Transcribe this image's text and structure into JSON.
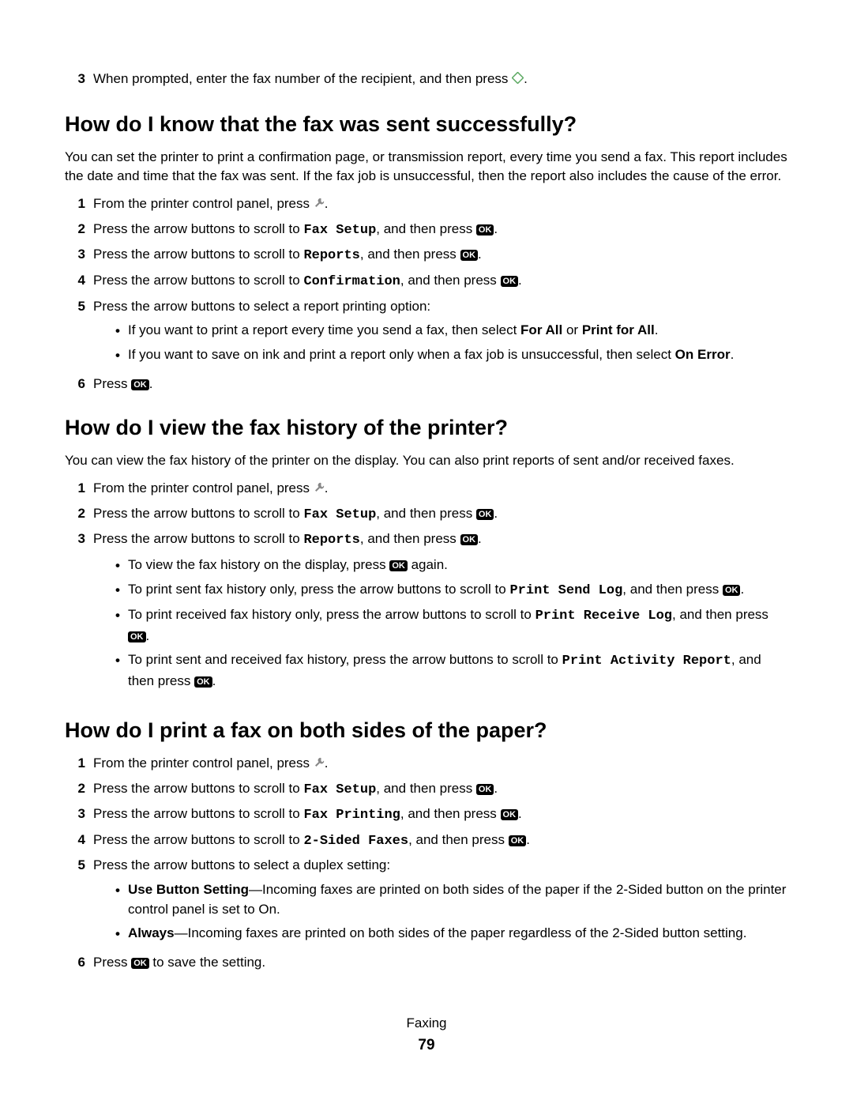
{
  "icons": {
    "diamond_color": "#5aa860",
    "ok_label": "OK",
    "wrench_color": "#888888"
  },
  "intro": {
    "num": "3",
    "text_pre": "When prompted, enter the fax number of the recipient, and then press ",
    "text_post": "."
  },
  "section1": {
    "heading": "How do I know that the fax was sent successfully?",
    "body": "You can set the printer to print a confirmation page, or transmission report, every time you send a fax. This report includes the date and time that the fax was sent. If the fax job is unsuccessful, then the report also includes the cause of the error.",
    "steps": [
      {
        "num": "1",
        "pre": "From the printer control panel, press ",
        "icon": "wrench",
        "post": "."
      },
      {
        "num": "2",
        "pre": "Press the arrow buttons to scroll to ",
        "mono": "Fax Setup",
        "mid": ", and then press ",
        "icon": "ok",
        "post": "."
      },
      {
        "num": "3",
        "pre": "Press the arrow buttons to scroll to ",
        "mono": "Reports",
        "mid": ", and then press ",
        "icon": "ok",
        "post": "."
      },
      {
        "num": "4",
        "pre": "Press the arrow buttons to scroll to ",
        "mono": "Confirmation",
        "mid": ", and then press ",
        "icon": "ok",
        "post": "."
      },
      {
        "num": "5",
        "pre": "Press the arrow buttons to select a report printing option:",
        "bullets": [
          {
            "pre": "If you want to print a report every time you send a fax, then select ",
            "b1": "For All",
            "mid": " or ",
            "b2": "Print for All",
            "post": "."
          },
          {
            "pre": "If you want to save on ink and print a report only when a fax job is unsuccessful, then select ",
            "b1": "On Error",
            "post": "."
          }
        ]
      },
      {
        "num": "6",
        "pre": "Press ",
        "icon": "ok",
        "post": "."
      }
    ]
  },
  "section2": {
    "heading": "How do I view the fax history of the printer?",
    "body": "You can view the fax history of the printer on the display. You can also print reports of sent and/or received faxes.",
    "steps": [
      {
        "num": "1",
        "pre": "From the printer control panel, press ",
        "icon": "wrench",
        "post": "."
      },
      {
        "num": "2",
        "pre": "Press the arrow buttons to scroll to ",
        "mono": "Fax Setup",
        "mid": ", and then press ",
        "icon": "ok",
        "post": "."
      },
      {
        "num": "3",
        "pre": "Press the arrow buttons to scroll to ",
        "mono": "Reports",
        "mid": ", and then press ",
        "icon": "ok",
        "post": ".",
        "bullets": [
          {
            "pre": "To view the fax history on the display, press ",
            "icon": "ok",
            "post": " again."
          },
          {
            "pre": "To print sent fax history only, press the arrow buttons to scroll to ",
            "mono": "Print Send Log",
            "mid": ", and then press ",
            "icon": "ok",
            "post": "."
          },
          {
            "pre": "To print received fax history only, press the arrow buttons to scroll to ",
            "mono": "Print Receive Log",
            "mid": ", and then press ",
            "icon": "ok",
            "post": "."
          },
          {
            "pre": "To print sent and received fax history, press the arrow buttons to scroll to ",
            "mono": "Print Activity Report",
            "mid": ", and then press ",
            "icon": "ok",
            "post": "."
          }
        ]
      }
    ]
  },
  "section3": {
    "heading": "How do I print a fax on both sides of the paper?",
    "steps": [
      {
        "num": "1",
        "pre": "From the printer control panel, press ",
        "icon": "wrench",
        "post": "."
      },
      {
        "num": "2",
        "pre": "Press the arrow buttons to scroll to ",
        "mono": "Fax Setup",
        "mid": ", and then press ",
        "icon": "ok",
        "post": "."
      },
      {
        "num": "3",
        "pre": "Press the arrow buttons to scroll to ",
        "mono": "Fax Printing",
        "mid": ", and then press ",
        "icon": "ok",
        "post": "."
      },
      {
        "num": "4",
        "pre": "Press the arrow buttons to scroll to ",
        "mono": "2-Sided Faxes",
        "mid": ", and then press ",
        "icon": "ok",
        "post": "."
      },
      {
        "num": "5",
        "pre": "Press the arrow buttons to select a duplex setting:",
        "bullets": [
          {
            "b1": "Use Button Setting",
            "pre2": "—Incoming faxes are printed on both sides of the paper if the 2-Sided button on the printer control panel is set to On."
          },
          {
            "b1": "Always",
            "pre2": "—Incoming faxes are printed on both sides of the paper regardless of the 2-Sided button setting."
          }
        ]
      },
      {
        "num": "6",
        "pre": "Press ",
        "icon": "ok",
        "post": " to save the setting."
      }
    ]
  },
  "footer": {
    "section": "Faxing",
    "page": "79"
  }
}
